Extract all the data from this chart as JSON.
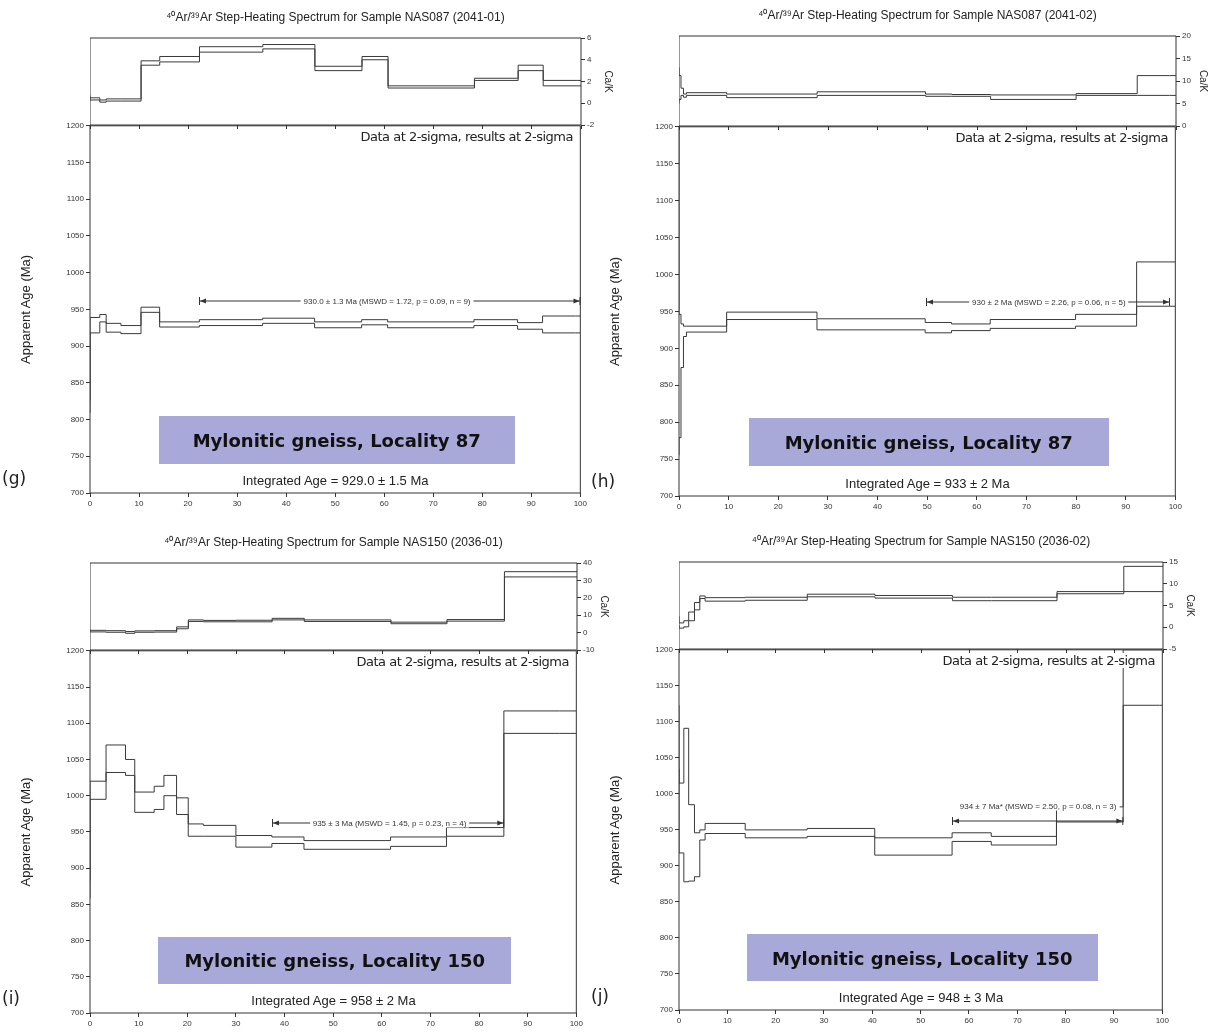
{
  "chart_data": [
    {
      "type": "step",
      "title": "⁴⁰Ar/³⁹Ar Step-Heating Spectrum for Sample NAS087 (2041-01)",
      "ylabel": "Ca/K",
      "xlim": [
        0,
        100
      ],
      "xticks": [
        0,
        10,
        20,
        30,
        40,
        50,
        60,
        70,
        80,
        90,
        100
      ],
      "ylim": [
        -2,
        6
      ],
      "yticks": [
        -2,
        0,
        2,
        4,
        6
      ],
      "tick_labels": "y",
      "series": [
        {
          "color": "#3a3a3a",
          "x": [
            0,
            2.0,
            3.3,
            6.3,
            10.4,
            14.2,
            22.3,
            35.2,
            45.8,
            55.4,
            60.7,
            78.3,
            87.2,
            92.3,
            99.0,
            100
          ],
          "values": [
            0.7,
            0.5,
            0.3,
            0.4,
            0.4,
            3.9,
            4.3,
            5.2,
            5.4,
            3.4,
            4.3,
            1.6,
            2.3,
            3.5,
            2.1,
            2.1
          ]
        },
        {
          "color": "#3a3a3a",
          "x": [
            0,
            2.0,
            3.3,
            6.3,
            10.4,
            14.2,
            22.3,
            35.2,
            45.8,
            55.4,
            60.7,
            78.3,
            87.2,
            92.3,
            99.0,
            100
          ],
          "values": [
            0.5,
            0.3,
            0.1,
            0.2,
            0.2,
            3.5,
            3.8,
            4.7,
            5.0,
            3.0,
            4.0,
            1.4,
            2.1,
            3.0,
            1.6,
            1.6
          ]
        }
      ]
    },
    {
      "type": "step",
      "ylabel": "Apparent Age (Ma)",
      "xlim": [
        0,
        100
      ],
      "xticks": [
        0,
        10,
        20,
        30,
        40,
        50,
        60,
        70,
        80,
        90,
        100
      ],
      "ylim": [
        700,
        1200
      ],
      "yticks": [
        700,
        750,
        800,
        850,
        900,
        950,
        1000,
        1050,
        1100,
        1150,
        1200
      ],
      "series": [
        {
          "color": "#3a3a3a",
          "x": [
            0,
            2.0,
            3.3,
            6.3,
            10.4,
            14.2,
            22.3,
            35.2,
            45.8,
            55.4,
            60.7,
            78.3,
            87.2,
            92.3,
            99.0,
            100
          ],
          "values": [
            826,
            939,
            943,
            931,
            928,
            953,
            933,
            936,
            938,
            933,
            936,
            933,
            936,
            932,
            941,
            941
          ]
        },
        {
          "color": "#3a3a3a",
          "x": [
            0,
            2.0,
            3.3,
            6.3,
            10.4,
            14.2,
            22.3,
            35.2,
            45.8,
            55.4,
            60.7,
            78.3,
            87.2,
            92.3,
            99.0,
            100
          ],
          "values": [
            809,
            918,
            933,
            919,
            917,
            946,
            926,
            928,
            931,
            925,
            929,
            925,
            928,
            923,
            918,
            918
          ]
        }
      ],
      "annotations": [
        "Data at 2-sigma, results at 2-sigma",
        "Mylonitic gneiss, Locality 87",
        "Integrated Age = 929.0 ± 1.5 Ma",
        "(g)",
        "930.0 ± 1.3 Ma (MSWD = 1.72, p = 0.09, n = 9)"
      ]
    },
    {
      "type": "step",
      "title": "⁴⁰Ar/³⁹Ar Step-Heating Spectrum for Sample NAS087 (2041-02)",
      "ylabel": "Ca/K",
      "xlim": [
        0,
        100
      ],
      "xticks": [
        0,
        10,
        20,
        30,
        40,
        50,
        60,
        70,
        80,
        90,
        100
      ],
      "ylim": [
        0,
        20
      ],
      "yticks": [
        0,
        5,
        10,
        15,
        20
      ],
      "tick_labels": "y",
      "series": [
        {
          "color": "#3a3a3a",
          "x": [
            0,
            0.4,
            0.9,
            1.5,
            9.6,
            27.8,
            49.6,
            54.9,
            62.7,
            79.9,
            92.2,
            98.7,
            100
          ],
          "values": [
            13.0,
            11.2,
            8.4,
            7.1,
            7.4,
            7.1,
            7.6,
            7.1,
            7.0,
            6.9,
            7.2,
            11.2,
            11.2
          ]
        },
        {
          "color": "#3a3a3a",
          "x": [
            0,
            0.4,
            0.9,
            1.5,
            9.6,
            27.8,
            49.6,
            54.9,
            62.7,
            79.9,
            92.2,
            98.7,
            100
          ],
          "values": [
            5.0,
            5.9,
            6.8,
            6.4,
            6.8,
            6.3,
            6.8,
            6.6,
            6.6,
            5.9,
            6.8,
            6.8,
            6.8
          ]
        }
      ]
    },
    {
      "type": "step",
      "ylabel": "Apparent Age (Ma)",
      "xlim": [
        0,
        100
      ],
      "xticks": [
        0,
        10,
        20,
        30,
        40,
        50,
        60,
        70,
        80,
        90,
        100
      ],
      "ylim": [
        700,
        1200
      ],
      "yticks": [
        700,
        750,
        800,
        850,
        900,
        950,
        1000,
        1050,
        1100,
        1150,
        1200
      ],
      "series": [
        {
          "color": "#3a3a3a",
          "x": [
            0,
            0.4,
            0.9,
            1.5,
            9.6,
            27.8,
            49.6,
            54.9,
            62.7,
            79.9,
            92.2,
            98.7,
            100
          ],
          "values": [
            1200,
            946,
            933,
            930,
            930,
            949,
            940,
            935,
            933,
            939,
            946,
            1017,
            1017
          ]
        },
        {
          "color": "#3a3a3a",
          "x": [
            0,
            0.4,
            0.9,
            1.5,
            9.6,
            27.8,
            49.6,
            54.9,
            62.7,
            79.9,
            92.2,
            98.7,
            100
          ],
          "values": [
            755,
            779,
            874,
            916,
            922,
            939,
            925,
            921,
            924,
            927,
            930,
            957,
            957
          ]
        }
      ],
      "annotations": [
        "Data at 2-sigma, results at 2-sigma",
        "Mylonitic gneiss, Locality 87",
        "Integrated Age = 933 ± 2 Ma",
        "(h)",
        "930 ± 2 Ma (MSWD = 2.26, p = 0.06, n = 5)"
      ]
    },
    {
      "type": "step",
      "title": "⁴⁰Ar/³⁹Ar Step-Heating Spectrum for Sample NAS150 (2036-01)",
      "ylabel": "Ca/K",
      "xlim": [
        0,
        100
      ],
      "xticks": [
        0,
        10,
        20,
        30,
        40,
        50,
        60,
        70,
        80,
        90,
        100
      ],
      "ylim": [
        -10,
        40
      ],
      "yticks": [
        -10,
        0,
        10,
        20,
        30,
        40
      ],
      "tick_labels": "y",
      "series": [
        {
          "color": "#3a3a3a",
          "x": [
            0,
            3.3,
            7.3,
            9.2,
            13.2,
            15.2,
            17.8,
            20.2,
            23.3,
            30.0,
            37.4,
            44.0,
            61.8,
            73.3,
            85.1,
            96.5,
            100
          ],
          "values": [
            1.9,
            1.3,
            1.1,
            0.6,
            1.0,
            1.1,
            1.1,
            3.3,
            7.3,
            7.0,
            7.1,
            8.2,
            7.3,
            6.0,
            7.5,
            35,
            35
          ]
        },
        {
          "color": "#3a3a3a",
          "x": [
            0,
            3.3,
            7.3,
            9.2,
            13.2,
            15.2,
            17.8,
            20.2,
            23.3,
            30.0,
            37.4,
            44.0,
            61.8,
            73.3,
            85.1,
            96.5,
            100
          ],
          "values": [
            0.7,
            0.4,
            0.2,
            -0.4,
            0.2,
            0.3,
            0.3,
            2.2,
            6.4,
            6.2,
            6.2,
            7.3,
            6.4,
            5.1,
            6.6,
            32,
            32
          ]
        }
      ]
    },
    {
      "type": "step",
      "ylabel": "Apparent Age (Ma)",
      "xlim": [
        0,
        100
      ],
      "xticks": [
        0,
        10,
        20,
        30,
        40,
        50,
        60,
        70,
        80,
        90,
        100
      ],
      "ylim": [
        700,
        1200
      ],
      "yticks": [
        700,
        750,
        800,
        850,
        900,
        950,
        1000,
        1050,
        1100,
        1150,
        1200
      ],
      "series": [
        {
          "color": "#3a3a3a",
          "x": [
            0,
            3.3,
            7.3,
            9.2,
            13.2,
            15.2,
            17.8,
            20.2,
            23.3,
            30.0,
            37.4,
            44.0,
            61.8,
            73.3,
            85.1,
            96.5,
            100
          ],
          "values": [
            883,
            1020,
            1070,
            1050,
            1005,
            1013,
            1028,
            997,
            961,
            959,
            945,
            943,
            938,
            943,
            956,
            1117,
            1117
          ]
        },
        {
          "color": "#3a3a3a",
          "x": [
            0,
            3.3,
            7.3,
            9.2,
            13.2,
            15.2,
            17.8,
            20.2,
            23.3,
            30.0,
            37.4,
            44.0,
            61.8,
            73.3,
            85.1,
            96.5,
            100
          ],
          "values": [
            858,
            995,
            1032,
            1028,
            977,
            981,
            1000,
            974,
            944,
            944,
            929,
            934,
            926,
            930,
            944,
            1086,
            1086
          ]
        }
      ],
      "annotations": [
        "Data at 2-sigma, results at 2-sigma",
        "Mylonitic gneiss, Locality 150",
        "Integrated Age = 958 ± 2 Ma",
        "(i)",
        "935 ± 3 Ma (MSWD = 1.45, p = 0.23, n = 4)"
      ]
    },
    {
      "type": "step",
      "title": "⁴⁰Ar/³⁹Ar Step-Heating Spectrum for Sample NAS150 (2036-02)",
      "ylabel": "Ca/K",
      "xlim": [
        0,
        100
      ],
      "xticks": [
        0,
        10,
        20,
        30,
        40,
        50,
        60,
        70,
        80,
        90,
        100
      ],
      "ylim": [
        -5,
        15
      ],
      "yticks": [
        -5,
        0,
        5,
        10,
        15
      ],
      "tick_labels": "y",
      "series": [
        {
          "color": "#3a3a3a",
          "x": [
            0,
            1.0,
            2.0,
            3.2,
            4.3,
            5.4,
            13.7,
            26.5,
            40.5,
            56.5,
            64.6,
            78.1,
            91.9,
            99.4,
            100
          ],
          "values": [
            2.5,
            1.0,
            1.5,
            3.5,
            5.7,
            7.2,
            6.8,
            6.9,
            7.6,
            7.3,
            6.9,
            6.9,
            8.2,
            14.0,
            14.0
          ]
        },
        {
          "color": "#3a3a3a",
          "x": [
            0,
            1.0,
            2.0,
            3.2,
            4.3,
            5.4,
            13.7,
            26.5,
            40.5,
            56.5,
            64.6,
            78.1,
            91.9,
            99.4,
            100
          ],
          "values": [
            0.5,
            -0.2,
            0.1,
            1.5,
            4.0,
            6.6,
            6.0,
            6.2,
            7.0,
            6.7,
            6.1,
            6.1,
            7.7,
            8.2,
            8.2
          ]
        }
      ]
    },
    {
      "type": "step",
      "ylabel": "Apparent Age (Ma)",
      "xlim": [
        0,
        100
      ],
      "xticks": [
        0,
        10,
        20,
        30,
        40,
        50,
        60,
        70,
        80,
        90,
        100
      ],
      "ylim": [
        700,
        1200
      ],
      "yticks": [
        700,
        750,
        800,
        850,
        900,
        950,
        1000,
        1050,
        1100,
        1150,
        1200
      ],
      "series": [
        {
          "color": "#3a3a3a",
          "x": [
            0,
            1.0,
            2.0,
            3.2,
            4.3,
            5.4,
            13.7,
            26.5,
            40.5,
            56.5,
            64.6,
            78.1,
            91.9,
            99.4,
            100
          ],
          "values": [
            1123,
            1015,
            1091,
            985,
            946,
            950,
            959,
            950,
            952,
            939,
            946,
            941,
            982,
            1200,
            1200
          ]
        },
        {
          "color": "#3a3a3a",
          "x": [
            0,
            1.0,
            2.0,
            3.2,
            4.3,
            5.4,
            13.7,
            26.5,
            40.5,
            56.5,
            64.6,
            78.1,
            91.9,
            99.4,
            100
          ],
          "values": [
            1035,
            918,
            878,
            879,
            885,
            936,
            945,
            939,
            941,
            915,
            934,
            929,
            961,
            1123,
            1123
          ]
        }
      ],
      "annotations": [
        "Data at 2-sigma, results at 2-sigma",
        "Mylonitic gneiss, Locality 150",
        "Integrated Age = 948 ± 3 Ma",
        "(j)",
        "934 ± 7 Ma* (MSWD = 2.50, p = 0.08, n = 3)"
      ]
    }
  ]
}
